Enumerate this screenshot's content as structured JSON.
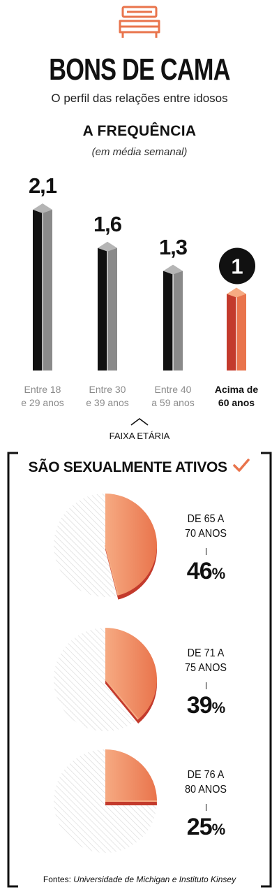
{
  "header": {
    "icon": "bed-icon",
    "title": "BONS DE CAMA",
    "subtitle": "O perfil das relações entre idosos"
  },
  "frequency": {
    "heading": "A FREQUÊNCIA",
    "note": "(em média semanal)",
    "axis_label": "FAIXA ETÁRIA",
    "axis_icon": "chevron-up-icon"
  },
  "active": {
    "heading": "SÃO SEXUALMENTE ATIVOS",
    "heading_icon": "check-icon",
    "groups": [
      {
        "label": [
          "DE 65 A",
          "70 ANOS"
        ],
        "pct_num": "46",
        "pct_sign": "%"
      },
      {
        "label": [
          "DE 71 A",
          "75 ANOS"
        ],
        "pct_num": "39",
        "pct_sign": "%"
      },
      {
        "label": [
          "DE 76 A",
          "80 ANOS"
        ],
        "pct_num": "25",
        "pct_sign": "%"
      }
    ]
  },
  "source": {
    "prefix": "Fontes: ",
    "text": "Universidade de Michigan e Instituto Kinsey"
  },
  "colors": {
    "accent": "#e9744c",
    "accent_light": "#f6aa82",
    "accent_dark": "#c33a2c",
    "bar_dark": "#111111",
    "bar_gray": "#8a8a8a",
    "bar_top": "#b5b5b5"
  },
  "chart_data": [
    {
      "type": "bar",
      "title": "A FREQUÊNCIA",
      "subtitle": "(em média semanal)",
      "xlabel": "FAIXA ETÁRIA",
      "ylabel": "",
      "categories": [
        [
          "Entre 18",
          "e 29 anos"
        ],
        [
          "Entre 30",
          "e 39 anos"
        ],
        [
          "Entre 40",
          "a 59 anos"
        ],
        [
          "Acima de",
          "60 anos"
        ]
      ],
      "values": [
        2.1,
        1.6,
        1.3,
        1
      ],
      "value_labels": [
        "2,1",
        "1,6",
        "1,3",
        "1"
      ],
      "highlight_index": 3,
      "ylim": [
        0,
        2.1
      ],
      "grid": false
    },
    {
      "type": "pie",
      "title": "SÃO SEXUALMENTE ATIVOS",
      "categories": [
        "DE 65 A 70 ANOS",
        "DE 71 A 75 ANOS",
        "DE 76 A 80 ANOS"
      ],
      "values": [
        46,
        39,
        25
      ],
      "unit": "%"
    }
  ]
}
